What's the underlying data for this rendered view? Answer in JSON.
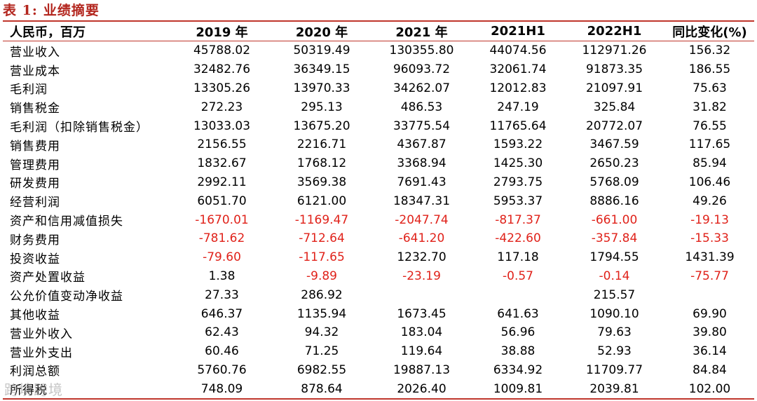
{
  "caption": {
    "number": "表 1:",
    "title": "业绩摘要"
  },
  "header": [
    "人民币，百万",
    "2019 年",
    "2020 年",
    "2021 年",
    "2021H1",
    "2022H1",
    "同比变化(%)"
  ],
  "rows": [
    [
      "营业收入",
      "45788.02",
      "50319.49",
      "130355.80",
      "44074.56",
      "112971.26",
      "156.32"
    ],
    [
      "营业成本",
      "32482.76",
      "36349.15",
      "96093.72",
      "32061.74",
      "91873.35",
      "186.55"
    ],
    [
      "毛利润",
      "13305.26",
      "13970.33",
      "34262.07",
      "12012.83",
      "21097.91",
      "75.63"
    ],
    [
      "销售税金",
      "272.23",
      "295.13",
      "486.53",
      "247.19",
      "325.84",
      "31.82"
    ],
    [
      "毛利润（扣除销售税金）",
      "13033.03",
      "13675.20",
      "33775.54",
      "11765.64",
      "20772.07",
      "76.55"
    ],
    [
      "销售费用",
      "2156.55",
      "2216.71",
      "4367.87",
      "1593.22",
      "3467.59",
      "117.65"
    ],
    [
      "管理费用",
      "1832.67",
      "1768.12",
      "3368.94",
      "1425.30",
      "2650.23",
      "85.94"
    ],
    [
      "研发费用",
      "2992.11",
      "3569.38",
      "7691.43",
      "2793.75",
      "5768.09",
      "106.46"
    ],
    [
      "经营利润",
      "6051.70",
      "6121.00",
      "18347.31",
      "5953.37",
      "8886.16",
      "49.26"
    ],
    [
      "资产和信用减值损失",
      "-1670.01",
      "-1169.47",
      "-2047.74",
      "-817.37",
      "-661.00",
      "-19.13"
    ],
    [
      "财务费用",
      "-781.62",
      "-712.64",
      "-641.20",
      "-422.60",
      "-357.84",
      "-15.33"
    ],
    [
      "投资收益",
      "-79.60",
      "-117.65",
      "1232.70",
      "117.18",
      "1794.55",
      "1431.39"
    ],
    [
      "资产处置收益",
      "1.38",
      "-9.89",
      "-23.19",
      "-0.57",
      "-0.14",
      "-75.77"
    ],
    [
      "公允价值变动净收益",
      "27.33",
      "286.92",
      "",
      "",
      "215.57",
      ""
    ],
    [
      "其他收益",
      "646.37",
      "1135.94",
      "1673.45",
      "641.63",
      "1090.10",
      "69.90"
    ],
    [
      "营业外收入",
      "62.43",
      "94.32",
      "183.04",
      "56.96",
      "79.63",
      "39.80"
    ],
    [
      "营业外支出",
      "60.46",
      "71.25",
      "119.64",
      "38.88",
      "52.93",
      "36.14"
    ],
    [
      "利润总额",
      "5760.76",
      "6982.55",
      "19887.13",
      "6334.92",
      "11709.77",
      "84.84"
    ],
    [
      "所得税",
      "748.09",
      "878.64",
      "2026.40",
      "1009.81",
      "2039.81",
      "102.00"
    ]
  ],
  "watermark": "跨境跨境",
  "colors": {
    "accent": "#c0362c",
    "negative": "#e0221a",
    "caption": "#b3261e"
  }
}
